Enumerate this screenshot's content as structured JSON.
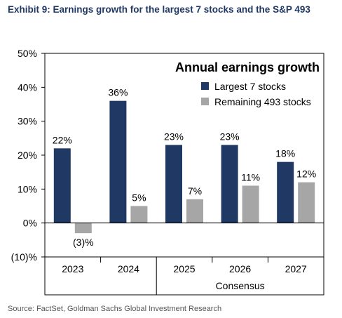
{
  "header": {
    "title": "Exhibit 9: Earnings growth for the largest 7 stocks and the S&P 493"
  },
  "footer": {
    "source": "Source: FactSet, Goldman Sachs Global Investment Research"
  },
  "colors": {
    "largest7": "#1f3864",
    "remaining493": "#a6a6a6"
  },
  "chart_data": {
    "type": "bar",
    "title": "Annual earnings growth",
    "categories": [
      "2023",
      "2024",
      "2025",
      "2026",
      "2027"
    ],
    "series": [
      {
        "name": "Largest 7 stocks",
        "values": [
          22,
          36,
          23,
          23,
          18
        ],
        "labels": [
          "22%",
          "36%",
          "23%",
          "23%",
          "18%"
        ]
      },
      {
        "name": "Remaining 493 stocks",
        "values": [
          -3,
          5,
          7,
          11,
          12
        ],
        "labels": [
          "(3)%",
          "5%",
          "7%",
          "11%",
          "12%"
        ]
      }
    ],
    "yticks": [
      50,
      40,
      30,
      20,
      10,
      0,
      -10
    ],
    "ytick_labels": [
      "50%",
      "40%",
      "30%",
      "20%",
      "10%",
      "0%",
      "(10)%"
    ],
    "ylim": [
      -10,
      50
    ],
    "group_label": "Consensus",
    "legend_position": "top-right",
    "grid": false
  }
}
